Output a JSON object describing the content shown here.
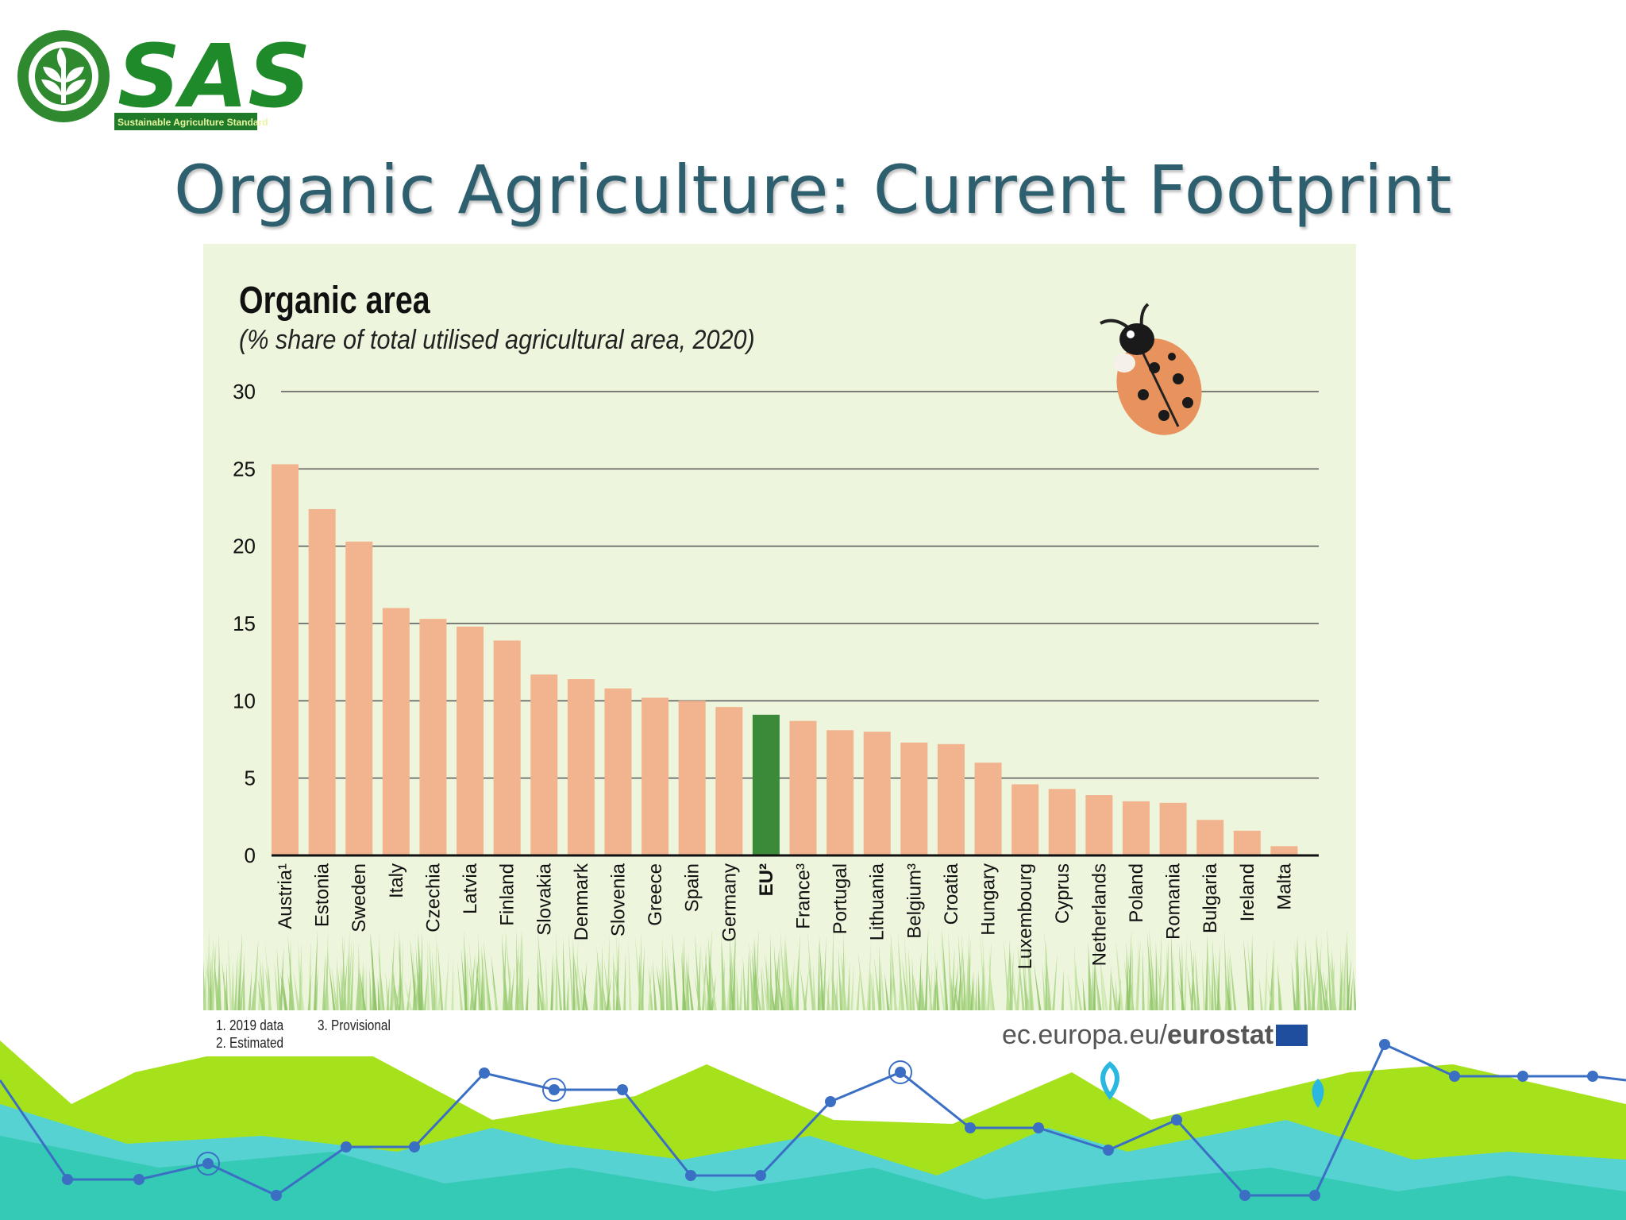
{
  "logo": {
    "text": "SAS",
    "tagline": "Sustainable Agriculture Standard",
    "icon": "leaf-circle-icon"
  },
  "slide": {
    "title": "Organic Agriculture: Current Footprint"
  },
  "chart_data": {
    "type": "bar",
    "title": "Organic area",
    "subtitle": "(% share of total utilised agricultural area, 2020)",
    "categories": [
      "Austria¹",
      "Estonia",
      "Sweden",
      "Italy",
      "Czechia",
      "Latvia",
      "Finland",
      "Slovakia",
      "Denmark",
      "Slovenia",
      "Greece",
      "Spain",
      "Germany",
      "EU²",
      "France³",
      "Portugal",
      "Lithuania",
      "Belgium³",
      "Croatia",
      "Hungary",
      "Luxembourg",
      "Cyprus",
      "Netherlands",
      "Poland",
      "Romania",
      "Bulgaria",
      "Ireland",
      "Malta"
    ],
    "values": [
      25.3,
      22.4,
      20.3,
      16.0,
      15.3,
      14.8,
      13.9,
      11.7,
      11.4,
      10.8,
      10.2,
      10.0,
      9.6,
      9.1,
      8.7,
      8.1,
      8.0,
      7.3,
      7.2,
      6.0,
      4.6,
      4.3,
      3.9,
      3.5,
      3.4,
      2.3,
      1.6,
      0.6
    ],
    "highlight": "EU²",
    "ylim": [
      0,
      30
    ],
    "yticks": [
      0,
      5,
      10,
      15,
      20,
      25,
      30
    ],
    "grid": true,
    "colors": {
      "bar": "#f2b48e",
      "highlight": "#3a8a3a",
      "background": "#eef5dd"
    }
  },
  "footnotes": {
    "n1": "1. 2019 data",
    "n2": "2. Estimated",
    "n3": "3. Provisional"
  },
  "source": {
    "prefix": "ec.europa.eu/",
    "brand": "eurostat"
  }
}
